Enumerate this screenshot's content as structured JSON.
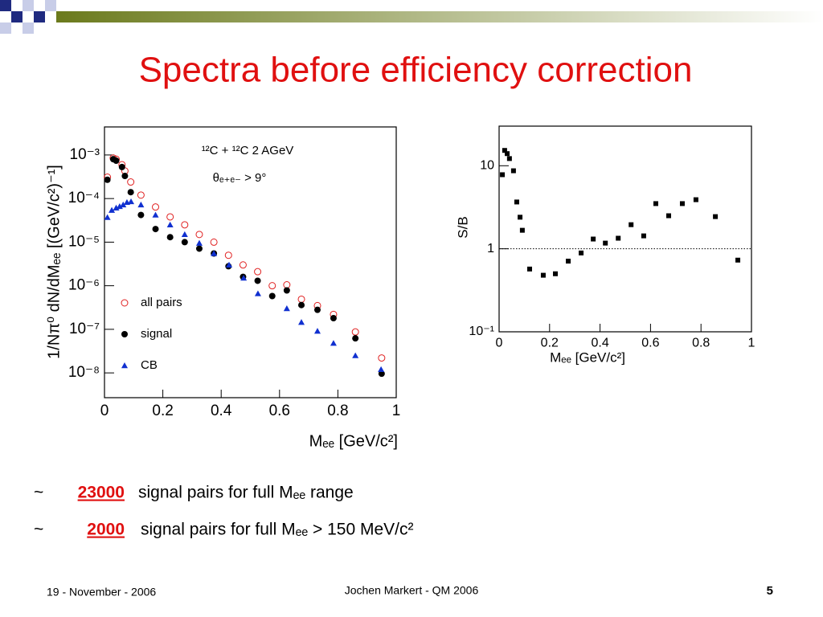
{
  "title": "Spectra before efficiency correction",
  "bullets": [
    {
      "prefix": "~",
      "highlight": "23000",
      "text": "signal pairs for full Mₑₑ range"
    },
    {
      "prefix": "~",
      "highlight": "2000",
      "text": "signal pairs for full Mₑₑ > 150 MeV/c²"
    }
  ],
  "footer": {
    "date": "19 - November - 2006",
    "author": "Jochen Markert - QM 2006",
    "page": "5"
  },
  "chart_data": [
    {
      "type": "scatter",
      "x_label": "Mₑₑ [GeV/c²]",
      "y_label": "1/Nπ⁰ dN/dMₑₑ [(GeV/c²)⁻¹]",
      "log_y": true,
      "annotations": [
        "¹²C + ¹²C  2 AGeV",
        "θₑ₊ₑ₋ > 9°"
      ],
      "xlim": [
        0,
        1
      ],
      "xticks": [
        0,
        0.2,
        0.4,
        0.6,
        0.8,
        1
      ],
      "ylim": [
        2.7e-09,
        0.0044
      ],
      "yticks": [
        {
          "value": 0.001,
          "label": "10⁻³"
        },
        {
          "value": 0.0001,
          "label": "10⁻⁴"
        },
        {
          "value": 1e-05,
          "label": "10⁻⁵"
        },
        {
          "value": 1e-06,
          "label": "10⁻⁶"
        },
        {
          "value": 1e-07,
          "label": "10⁻⁷"
        },
        {
          "value": 1e-08,
          "label": "10⁻⁸"
        }
      ],
      "series": [
        {
          "name": "all pairs",
          "color": "#e02020",
          "marker": "open-circle",
          "x": [
            0.01,
            0.03,
            0.04,
            0.06,
            0.07,
            0.09,
            0.125,
            0.175,
            0.225,
            0.275,
            0.325,
            0.375,
            0.425,
            0.475,
            0.525,
            0.575,
            0.625,
            0.675,
            0.73,
            0.785,
            0.86,
            0.95
          ],
          "values": [
            0.00031,
            0.00085,
            0.0008,
            0.0006,
            0.00043,
            0.00024,
            0.00012,
            6.4e-05,
            3.8e-05,
            2.5e-05,
            1.5e-05,
            1e-05,
            5e-06,
            3e-06,
            2.1e-06,
            1e-06,
            1.05e-06,
            4.9e-07,
            3.5e-07,
            2.2e-07,
            8.7e-08,
            2.2e-08
          ]
        },
        {
          "name": "signal",
          "color": "#000000",
          "marker": "circle",
          "x": [
            0.01,
            0.03,
            0.04,
            0.06,
            0.07,
            0.09,
            0.125,
            0.175,
            0.225,
            0.275,
            0.325,
            0.375,
            0.425,
            0.475,
            0.525,
            0.575,
            0.625,
            0.675,
            0.73,
            0.785,
            0.86,
            0.95
          ],
          "values": [
            0.00027,
            0.0008,
            0.00074,
            0.00053,
            0.00033,
            0.00014,
            4.2e-05,
            2e-05,
            1.3e-05,
            1e-05,
            7.1e-06,
            5.5e-06,
            2.8e-06,
            1.6e-06,
            1.3e-06,
            5.8e-07,
            7.8e-07,
            3.6e-07,
            2.8e-07,
            1.8e-07,
            6.2e-08,
            9.6e-09
          ]
        },
        {
          "name": "CB",
          "color": "#1030d0",
          "marker": "triangle",
          "x": [
            0.01,
            0.025,
            0.04,
            0.052,
            0.064,
            0.077,
            0.091,
            0.125,
            0.175,
            0.225,
            0.275,
            0.325,
            0.375,
            0.427,
            0.477,
            0.526,
            0.625,
            0.675,
            0.73,
            0.785,
            0.86,
            0.948
          ],
          "values": [
            3.7e-05,
            5.4e-05,
            6.1e-05,
            6.6e-05,
            7.2e-05,
            8.2e-05,
            8.5e-05,
            7.2e-05,
            4.2e-05,
            2.5e-05,
            1.5e-05,
            9.5e-06,
            5.5e-06,
            3e-06,
            1.5e-06,
            6.6e-07,
            3e-07,
            1.45e-07,
            9.1e-08,
            4.8e-08,
            2.5e-08,
            1.2e-08
          ]
        }
      ]
    },
    {
      "type": "scatter",
      "x_label": "Mₑₑ [GeV/c²]",
      "y_label": "S/B",
      "log_y": true,
      "reference_line": 1,
      "xlim": [
        0,
        1
      ],
      "xticks": [
        0,
        0.2,
        0.4,
        0.6,
        0.8,
        1
      ],
      "ylim": [
        0.1,
        30
      ],
      "yticks": [
        {
          "value": 0.1,
          "label": "10⁻¹"
        },
        1,
        10
      ],
      "series": [
        {
          "name": "S/B",
          "color": "#000000",
          "marker": "square",
          "x": [
            0.013,
            0.022,
            0.032,
            0.041,
            0.057,
            0.07,
            0.083,
            0.092,
            0.121,
            0.175,
            0.223,
            0.274,
            0.325,
            0.373,
            0.421,
            0.472,
            0.523,
            0.573,
            0.621,
            0.672,
            0.726,
            0.78,
            0.857,
            0.946
          ],
          "values": [
            7.8,
            15.3,
            14,
            12.2,
            8.7,
            3.66,
            2.4,
            1.67,
            0.57,
            0.48,
            0.5,
            0.71,
            0.89,
            1.31,
            1.17,
            1.34,
            1.95,
            1.43,
            3.5,
            2.5,
            3.5,
            3.9,
            2.44,
            0.73
          ]
        }
      ]
    }
  ]
}
